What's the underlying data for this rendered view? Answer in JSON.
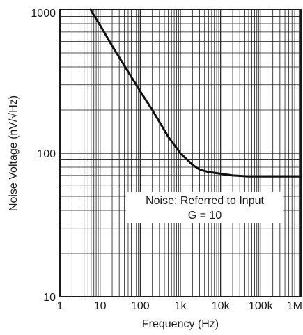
{
  "chart_data": {
    "type": "line",
    "title": "",
    "xlabel": "Frequency (Hz)",
    "ylabel": "Noise Voltage (nV/√Hz)",
    "x_scale": "log",
    "y_scale": "log",
    "xlim": [
      1,
      1000000
    ],
    "ylim": [
      10,
      1000
    ],
    "grid": true,
    "x_ticks": [
      {
        "value": 1,
        "label": "1"
      },
      {
        "value": 10,
        "label": "10"
      },
      {
        "value": 100,
        "label": "100"
      },
      {
        "value": 1000,
        "label": "1k"
      },
      {
        "value": 10000,
        "label": "10k"
      },
      {
        "value": 100000,
        "label": "100k"
      },
      {
        "value": 1000000,
        "label": "1M"
      }
    ],
    "y_ticks": [
      {
        "value": 10,
        "label": "10"
      },
      {
        "value": 100,
        "label": "100"
      },
      {
        "value": 1000,
        "label": "1000"
      }
    ],
    "annotation": {
      "line1": "Noise: Referred to Input",
      "line2": "G = 10"
    },
    "series": [
      {
        "color": "#111111",
        "points": [
          [
            5.8,
            1000
          ],
          [
            10,
            780
          ],
          [
            20,
            560
          ],
          [
            50,
            370
          ],
          [
            100,
            270
          ],
          [
            200,
            200
          ],
          [
            500,
            130
          ],
          [
            1000,
            100
          ],
          [
            2000,
            83
          ],
          [
            3000,
            77
          ],
          [
            5000,
            74
          ],
          [
            10000,
            72
          ],
          [
            20000,
            70
          ],
          [
            50000,
            69
          ],
          [
            100000,
            69
          ],
          [
            300000,
            69
          ],
          [
            1000000,
            69
          ]
        ]
      }
    ]
  }
}
